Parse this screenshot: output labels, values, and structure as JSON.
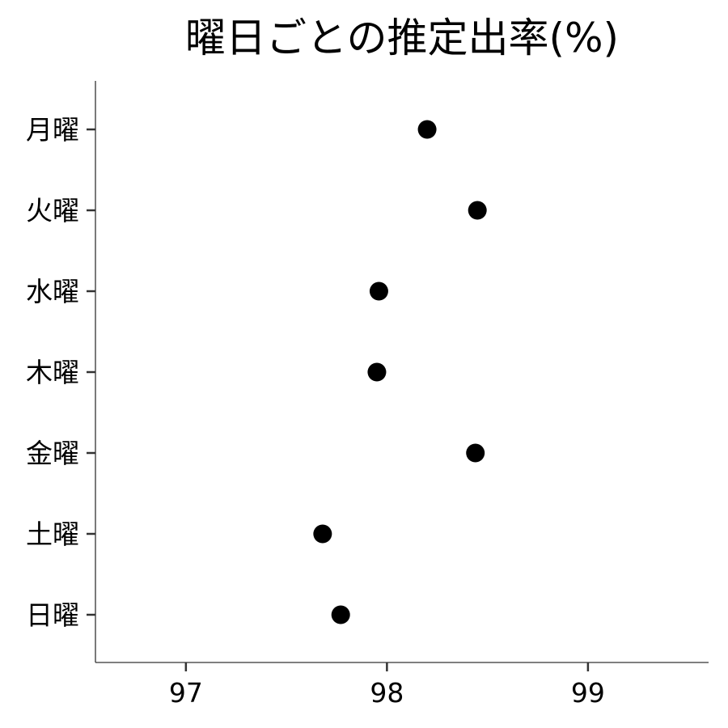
{
  "chart_data": {
    "type": "scatter",
    "title": "曜日ごとの推定出率(%)",
    "xlabel": "",
    "ylabel": "",
    "categories": [
      "月曜",
      "火曜",
      "水曜",
      "木曜",
      "金曜",
      "土曜",
      "日曜"
    ],
    "values": [
      98.2,
      98.45,
      97.96,
      97.95,
      98.44,
      97.68,
      97.77
    ],
    "xlim": [
      96.55,
      99.6
    ],
    "xticks": [
      "97",
      "98",
      "99"
    ],
    "grid": false,
    "colors": {
      "point": "#000000",
      "axis": "#333333"
    }
  }
}
